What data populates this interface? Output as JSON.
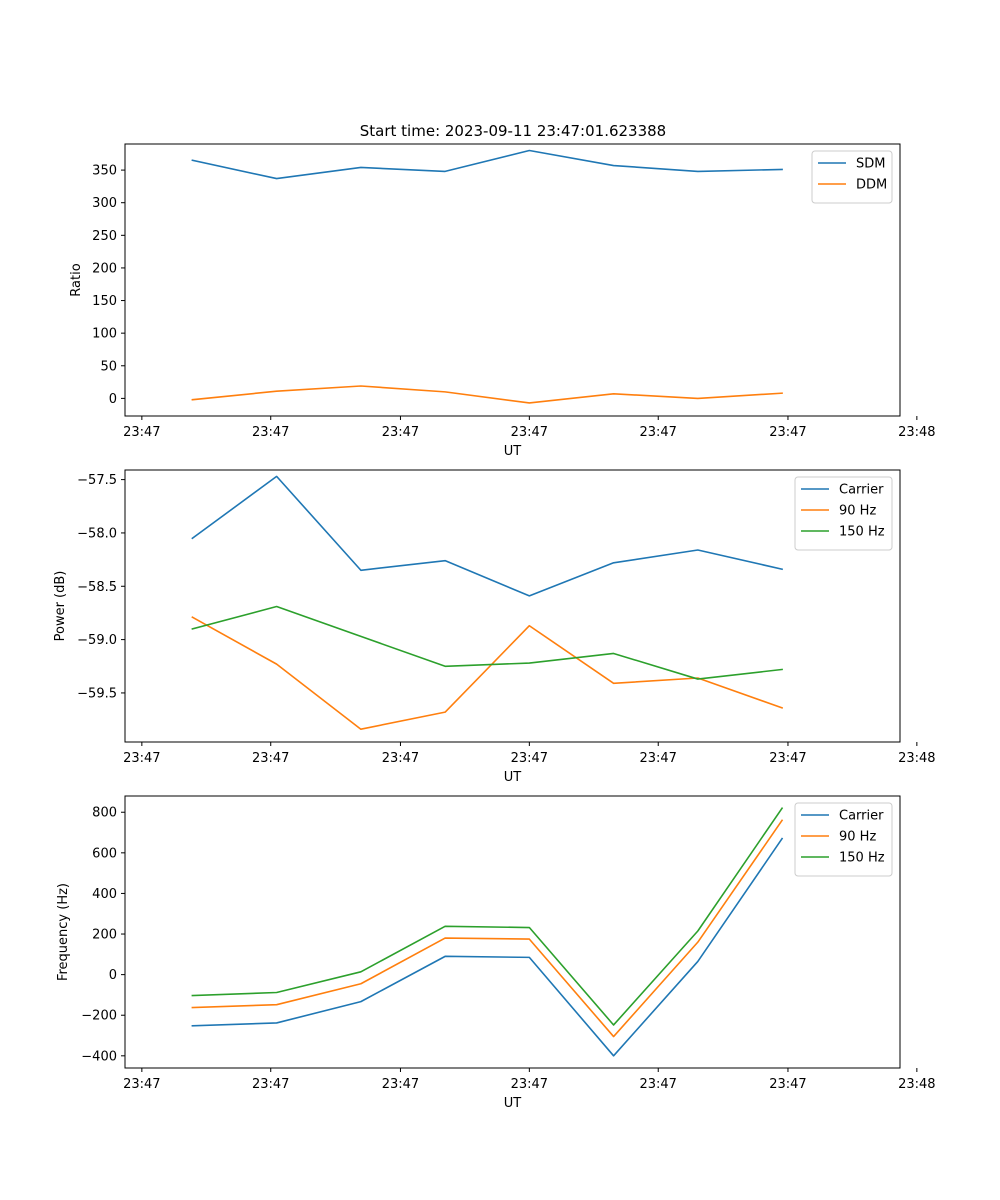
{
  "chart_data": [
    {
      "type": "line",
      "title": "Start time: 2023-09-11 23:47:01.623388",
      "xlabel": "UT",
      "ylabel": "Ratio",
      "x": [
        1,
        2,
        3,
        4,
        5,
        6,
        7,
        8
      ],
      "xlim": [
        0.2,
        9.4
      ],
      "xticks": [
        0.4,
        1.93,
        3.47,
        5.0,
        6.53,
        8.07,
        9.6
      ],
      "xtick_labels": [
        "23:47",
        "23:47",
        "23:47",
        "23:47",
        "23:47",
        "23:47",
        "23:48"
      ],
      "ylim": [
        -27,
        390
      ],
      "yticks": [
        0,
        50,
        100,
        150,
        200,
        250,
        300,
        350
      ],
      "ytick_labels": [
        "0",
        "50",
        "100",
        "150",
        "200",
        "250",
        "300",
        "350"
      ],
      "legend": "top-right",
      "series": [
        {
          "name": "SDM",
          "color": "#1f77b4",
          "values": [
            365,
            337,
            354,
            348,
            380,
            357,
            348,
            351
          ]
        },
        {
          "name": "DDM",
          "color": "#ff7f0e",
          "values": [
            -2,
            11,
            19,
            10,
            -7,
            7,
            0,
            8
          ]
        }
      ]
    },
    {
      "type": "line",
      "title": "",
      "xlabel": "UT",
      "ylabel": "Power (dB)",
      "x": [
        1,
        2,
        3,
        4,
        5,
        6,
        7,
        8
      ],
      "xlim": [
        0.2,
        9.4
      ],
      "xticks": [
        0.4,
        1.93,
        3.47,
        5.0,
        6.53,
        8.07,
        9.6
      ],
      "xtick_labels": [
        "23:47",
        "23:47",
        "23:47",
        "23:47",
        "23:47",
        "23:47",
        "23:48"
      ],
      "ylim": [
        -59.96,
        -57.41
      ],
      "yticks": [
        -59.5,
        -59.0,
        -58.5,
        -58.0,
        -57.5
      ],
      "ytick_labels": [
        "−59.5",
        "−59.0",
        "−58.5",
        "−58.0",
        "−57.5"
      ],
      "legend": "top-right",
      "series": [
        {
          "name": "Carrier",
          "color": "#1f77b4",
          "values": [
            -58.05,
            -57.47,
            -58.35,
            -58.26,
            -58.59,
            -58.28,
            -58.16,
            -58.34
          ]
        },
        {
          "name": "90 Hz",
          "color": "#ff7f0e",
          "values": [
            -58.79,
            -59.23,
            -59.84,
            -59.68,
            -58.87,
            -59.41,
            -59.36,
            -59.64
          ]
        },
        {
          "name": "150 Hz",
          "color": "#2ca02c",
          "values": [
            -58.9,
            -58.69,
            -58.97,
            -59.25,
            -59.22,
            -59.13,
            -59.37,
            -59.28
          ]
        }
      ]
    },
    {
      "type": "line",
      "title": "",
      "xlabel": "UT",
      "ylabel": "Frequency (Hz)",
      "x": [
        1,
        2,
        3,
        4,
        5,
        6,
        7,
        8
      ],
      "xlim": [
        0.2,
        9.4
      ],
      "xticks": [
        0.4,
        1.93,
        3.47,
        5.0,
        6.53,
        8.07,
        9.6
      ],
      "xtick_labels": [
        "23:47",
        "23:47",
        "23:47",
        "23:47",
        "23:47",
        "23:47",
        "23:48"
      ],
      "ylim": [
        -460,
        880
      ],
      "yticks": [
        -400,
        -200,
        0,
        200,
        400,
        600,
        800
      ],
      "ytick_labels": [
        "−400",
        "−200",
        "0",
        "200",
        "400",
        "600",
        "800"
      ],
      "legend": "top-right",
      "series": [
        {
          "name": "Carrier",
          "color": "#1f77b4",
          "values": [
            -252,
            -238,
            -133,
            90,
            85,
            -400,
            65,
            670
          ]
        },
        {
          "name": "90 Hz",
          "color": "#ff7f0e",
          "values": [
            -162,
            -148,
            -45,
            180,
            175,
            -305,
            160,
            760
          ]
        },
        {
          "name": "150 Hz",
          "color": "#2ca02c",
          "values": [
            -103,
            -88,
            14,
            238,
            232,
            -248,
            215,
            820
          ]
        }
      ]
    }
  ]
}
